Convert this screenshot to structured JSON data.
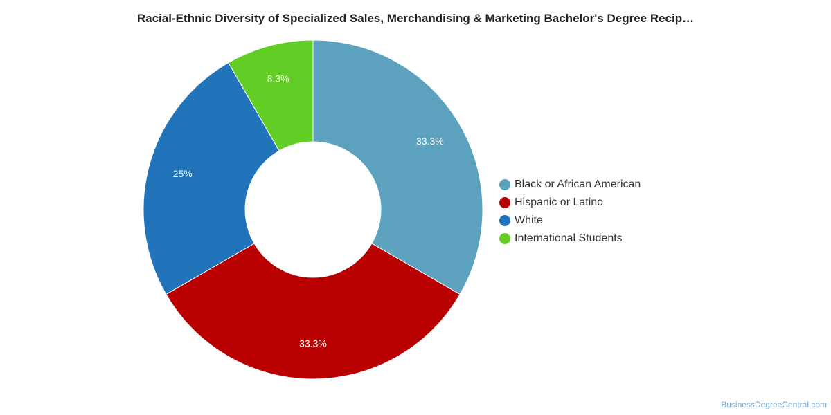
{
  "title": "Racial-Ethnic Diversity of Specialized Sales, Merchandising & Marketing Bachelor's Degree Recip…",
  "credit": "BusinessDegreeCentral.com",
  "chart_data": {
    "type": "pie",
    "donut": true,
    "title": "Racial-Ethnic Diversity of Specialized Sales, Merchandising & Marketing Bachelor's Degree Recip…",
    "legend_position": "right",
    "slices": [
      {
        "label": "Black or African American",
        "value": 33.3,
        "display": "33.3%",
        "color": "#5ca2be"
      },
      {
        "label": "Hispanic or Latino",
        "value": 33.3,
        "display": "33.3%",
        "color": "#b80000"
      },
      {
        "label": "White",
        "value": 25,
        "display": "25%",
        "color": "#2174b9"
      },
      {
        "label": "International Students",
        "value": 8.3,
        "display": "8.3%",
        "color": "#62cd24"
      }
    ]
  }
}
